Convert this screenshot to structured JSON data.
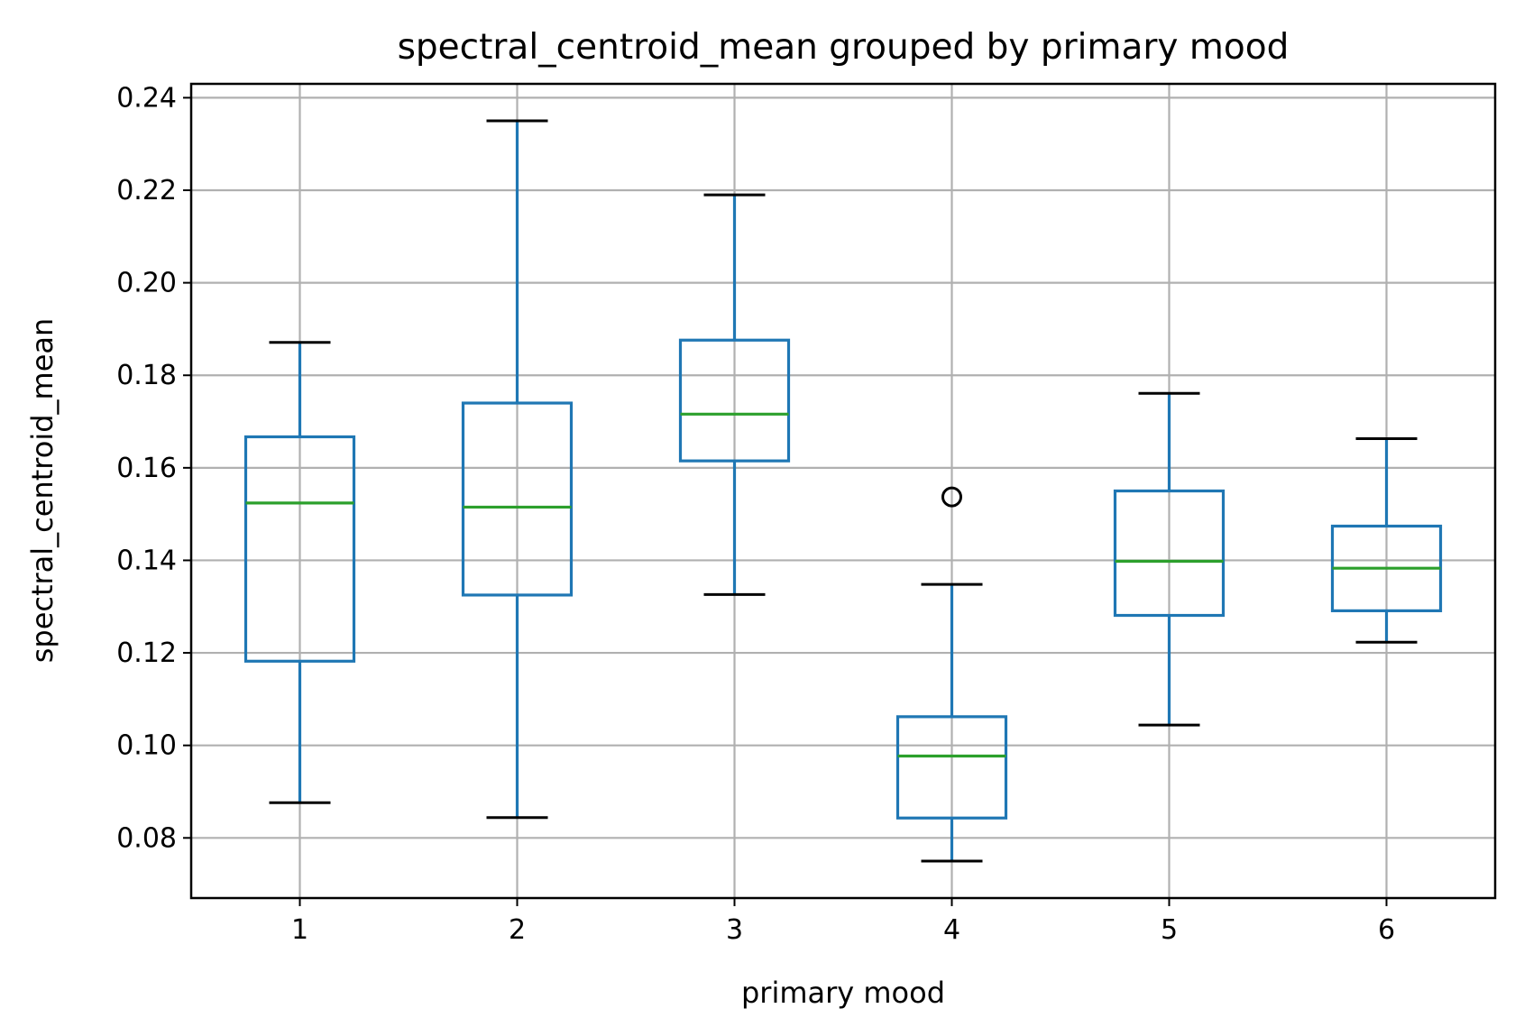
{
  "chart_data": {
    "type": "box",
    "title": "spectral_centroid_mean grouped by primary mood",
    "xlabel": "primary mood",
    "ylabel": "spectral_centroid_mean",
    "ylim": [
      0.067,
      0.243
    ],
    "yticks": [
      "0.08",
      "0.10",
      "0.12",
      "0.14",
      "0.16",
      "0.18",
      "0.20",
      "0.22",
      "0.24"
    ],
    "grid": true,
    "legend": "none",
    "categories": [
      "1",
      "2",
      "3",
      "4",
      "5",
      "6"
    ],
    "boxes": [
      {
        "category": "1",
        "whisker_low": 0.0876,
        "q1": 0.1182,
        "median": 0.1524,
        "q3": 0.1667,
        "whisker_high": 0.1871,
        "outliers": []
      },
      {
        "category": "2",
        "whisker_low": 0.0844,
        "q1": 0.1325,
        "median": 0.1515,
        "q3": 0.174,
        "whisker_high": 0.235,
        "outliers": []
      },
      {
        "category": "3",
        "whisker_low": 0.1326,
        "q1": 0.1615,
        "median": 0.1716,
        "q3": 0.1876,
        "whisker_high": 0.219,
        "outliers": []
      },
      {
        "category": "4",
        "whisker_low": 0.075,
        "q1": 0.0843,
        "median": 0.0977,
        "q3": 0.1062,
        "whisker_high": 0.1348,
        "outliers": [
          0.1537
        ]
      },
      {
        "category": "5",
        "whisker_low": 0.1044,
        "q1": 0.1281,
        "median": 0.1398,
        "q3": 0.155,
        "whisker_high": 0.1761,
        "outliers": []
      },
      {
        "category": "6",
        "whisker_low": 0.1223,
        "q1": 0.1291,
        "median": 0.1383,
        "q3": 0.1474,
        "whisker_high": 0.1663,
        "outliers": []
      }
    ],
    "colors": {
      "box": "#1f77b4",
      "median": "#2ca02c",
      "cap": "#000000",
      "grid": "#b0b0b0",
      "axes": "#000000",
      "outlier": "#000000"
    }
  }
}
